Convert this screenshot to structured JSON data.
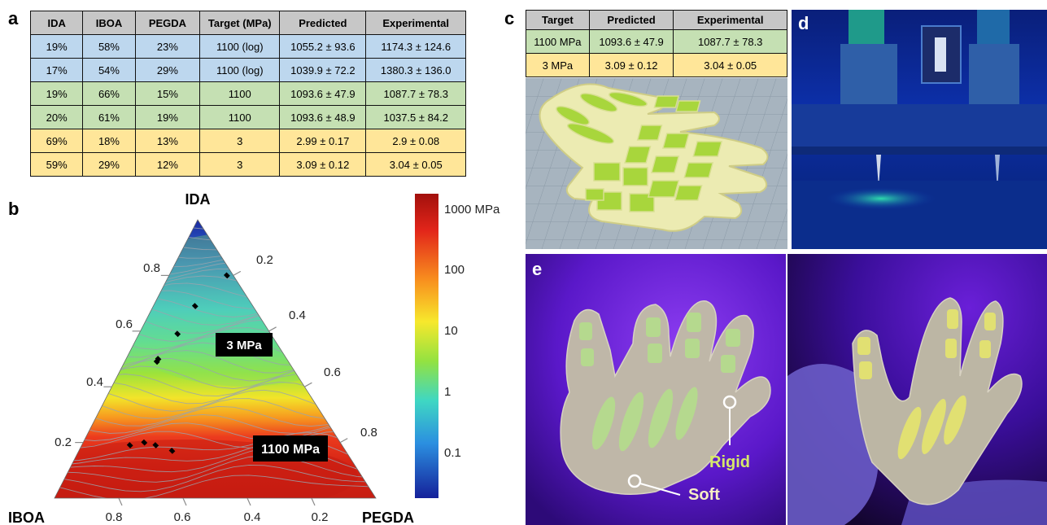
{
  "panels": {
    "a": "a",
    "b": "b",
    "c": "c",
    "d": "d",
    "e": "e"
  },
  "table_a": {
    "headers": [
      "IDA",
      "IBOA",
      "PEGDA",
      "Target (MPa)",
      "Predicted",
      "Experimental"
    ],
    "rows": [
      {
        "group": "blue",
        "cells": [
          "19%",
          "58%",
          "23%",
          "1100 (log)",
          "1055.2 ± 93.6",
          "1174.3 ± 124.6"
        ]
      },
      {
        "group": "blue",
        "cells": [
          "17%",
          "54%",
          "29%",
          "1100 (log)",
          "1039.9 ± 72.2",
          "1380.3 ± 136.0"
        ]
      },
      {
        "group": "green",
        "cells": [
          "19%",
          "66%",
          "15%",
          "1100",
          "1093.6 ± 47.9",
          "1087.7 ± 78.3"
        ]
      },
      {
        "group": "green",
        "cells": [
          "20%",
          "61%",
          "19%",
          "1100",
          "1093.6 ± 48.9",
          "1037.5 ± 84.2"
        ]
      },
      {
        "group": "orange",
        "cells": [
          "69%",
          "18%",
          "13%",
          "3",
          "2.99 ± 0.17",
          "2.9 ± 0.08"
        ]
      },
      {
        "group": "orange",
        "cells": [
          "59%",
          "29%",
          "12%",
          "3",
          "3.09 ± 0.12",
          "3.04 ± 0.05"
        ]
      }
    ]
  },
  "table_c": {
    "headers": [
      "Target",
      "Predicted",
      "Experimental"
    ],
    "rows": [
      {
        "group": "green",
        "cells": [
          "1100 MPa",
          "1093.6 ± 47.9",
          "1087.7 ± 78.3"
        ]
      },
      {
        "group": "orange",
        "cells": [
          "3 MPa",
          "3.09 ± 0.12",
          "3.04 ± 0.05"
        ]
      }
    ]
  },
  "ternary": {
    "apex_labels": {
      "top": "IDA",
      "left": "IBOA",
      "right": "PEGDA"
    },
    "left_ticks": [
      "0.8",
      "0.6",
      "0.4",
      "0.2"
    ],
    "right_ticks": [
      "0.2",
      "0.4",
      "0.6",
      "0.8"
    ],
    "bottom_ticks": [
      "0.8",
      "0.6",
      "0.4",
      "0.2"
    ],
    "annotations": [
      "3 MPa",
      "1100 MPa"
    ],
    "colorbar": {
      "labels": [
        "1000 MPa",
        "100",
        "10",
        "1",
        "0.1"
      ],
      "scale": "log"
    }
  },
  "photo_labels": {
    "rigid": "Rigid",
    "soft": "Soft"
  },
  "colors": {
    "blue_row": "#bdd7ee",
    "green_row": "#c5e0b3",
    "orange_row": "#ffe699",
    "header": "#c7c7c7",
    "uv_violet": "#6a1fd8",
    "rigid_label": "#d6e86a",
    "soft_label": "#f6eec4"
  },
  "chart_data": {
    "type": "ternary-contour",
    "components": [
      "IDA",
      "IBOA",
      "PEGDA"
    ],
    "colorbar_scale": "log",
    "colorbar_ticks": [
      "1000 MPa",
      "100",
      "10",
      "1",
      "0.1"
    ],
    "annotations": [
      "3 MPa",
      "1100 MPa"
    ],
    "points": [
      {
        "IDA": 0.8,
        "IBOA": 0.02,
        "PEGDA": 0.18
      },
      {
        "IDA": 0.69,
        "IBOA": 0.18,
        "PEGDA": 0.13
      },
      {
        "IDA": 0.59,
        "IBOA": 0.29,
        "PEGDA": 0.12
      },
      {
        "IDA": 0.5,
        "IBOA": 0.4,
        "PEGDA": 0.1
      },
      {
        "IDA": 0.49,
        "IBOA": 0.41,
        "PEGDA": 0.1
      },
      {
        "IDA": 0.2,
        "IBOA": 0.61,
        "PEGDA": 0.19
      },
      {
        "IDA": 0.19,
        "IBOA": 0.66,
        "PEGDA": 0.15
      },
      {
        "IDA": 0.19,
        "IBOA": 0.58,
        "PEGDA": 0.23
      },
      {
        "IDA": 0.17,
        "IBOA": 0.54,
        "PEGDA": 0.29
      }
    ]
  }
}
